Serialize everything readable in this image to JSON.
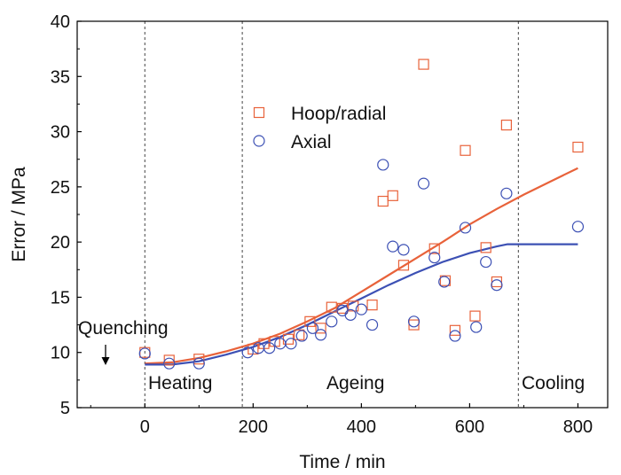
{
  "chart_data": {
    "type": "scatter",
    "xlabel": "Time / min",
    "ylabel": "Error / MPa",
    "xlim": [
      -125,
      855
    ],
    "ylim": [
      5,
      40
    ],
    "x_ticks": [
      0,
      200,
      400,
      600,
      800
    ],
    "y_ticks": [
      5,
      10,
      15,
      20,
      25,
      30,
      35,
      40
    ],
    "grid": false,
    "legend_position": "upper-center",
    "phase_boundaries": [
      0,
      180,
      690
    ],
    "phase_labels": {
      "heating": "Heating",
      "ageing": "Ageing",
      "cooling": "Cooling",
      "quenching": "Quenching"
    },
    "series": [
      {
        "name": "Hoop/radial",
        "marker": "square",
        "color": "#e8623a",
        "points": [
          [
            0,
            10.0
          ],
          [
            45,
            9.3
          ],
          [
            100,
            9.4
          ],
          [
            200,
            10.3
          ],
          [
            220,
            10.8
          ],
          [
            240,
            11.0
          ],
          [
            265,
            11.2
          ],
          [
            285,
            11.6
          ],
          [
            305,
            12.8
          ],
          [
            325,
            12.2
          ],
          [
            345,
            14.1
          ],
          [
            365,
            14.0
          ],
          [
            385,
            14.2
          ],
          [
            420,
            14.3
          ],
          [
            440,
            23.7
          ],
          [
            458,
            24.2
          ],
          [
            478,
            17.9
          ],
          [
            497,
            12.5
          ],
          [
            515,
            36.1
          ],
          [
            535,
            19.4
          ],
          [
            555,
            16.5
          ],
          [
            573,
            12.0
          ],
          [
            592,
            28.3
          ],
          [
            610,
            13.3
          ],
          [
            630,
            19.5
          ],
          [
            650,
            16.4
          ],
          [
            668,
            30.6
          ],
          [
            800,
            28.6
          ]
        ]
      },
      {
        "name": "Axial",
        "marker": "circle",
        "color": "#3c50b4",
        "points": [
          [
            0,
            9.9
          ],
          [
            45,
            9.0
          ],
          [
            100,
            9.0
          ],
          [
            190,
            10.0
          ],
          [
            210,
            10.4
          ],
          [
            230,
            10.4
          ],
          [
            250,
            10.8
          ],
          [
            270,
            10.8
          ],
          [
            290,
            11.5
          ],
          [
            310,
            12.2
          ],
          [
            325,
            11.6
          ],
          [
            345,
            12.8
          ],
          [
            365,
            13.8
          ],
          [
            380,
            13.4
          ],
          [
            400,
            13.9
          ],
          [
            420,
            12.5
          ],
          [
            440,
            27.0
          ],
          [
            458,
            19.6
          ],
          [
            478,
            19.3
          ],
          [
            497,
            12.8
          ],
          [
            515,
            25.3
          ],
          [
            535,
            18.6
          ],
          [
            553,
            16.4
          ],
          [
            573,
            11.5
          ],
          [
            592,
            21.3
          ],
          [
            612,
            12.3
          ],
          [
            630,
            18.2
          ],
          [
            650,
            16.1
          ],
          [
            668,
            24.4
          ],
          [
            800,
            21.4
          ]
        ]
      }
    ],
    "trend_lines": [
      {
        "series": "Hoop/radial",
        "color": "#e8623a",
        "points": [
          [
            0,
            9.0
          ],
          [
            50,
            9.1
          ],
          [
            100,
            9.5
          ],
          [
            150,
            10.1
          ],
          [
            200,
            10.8
          ],
          [
            250,
            11.7
          ],
          [
            300,
            12.8
          ],
          [
            350,
            14.0
          ],
          [
            400,
            15.5
          ],
          [
            450,
            17.0
          ],
          [
            500,
            18.5
          ],
          [
            550,
            20.0
          ],
          [
            600,
            21.6
          ],
          [
            650,
            23.0
          ],
          [
            700,
            24.3
          ],
          [
            750,
            25.5
          ],
          [
            800,
            26.7
          ]
        ]
      },
      {
        "series": "Axial",
        "color": "#3c50b4",
        "points": [
          [
            0,
            8.9
          ],
          [
            50,
            8.9
          ],
          [
            100,
            9.2
          ],
          [
            150,
            9.8
          ],
          [
            200,
            10.5
          ],
          [
            250,
            11.4
          ],
          [
            300,
            12.5
          ],
          [
            350,
            13.7
          ],
          [
            400,
            14.9
          ],
          [
            450,
            16.1
          ],
          [
            500,
            17.2
          ],
          [
            550,
            18.2
          ],
          [
            600,
            19.0
          ],
          [
            650,
            19.6
          ],
          [
            670,
            19.8
          ],
          [
            700,
            19.8
          ],
          [
            800,
            19.8
          ]
        ]
      }
    ]
  }
}
